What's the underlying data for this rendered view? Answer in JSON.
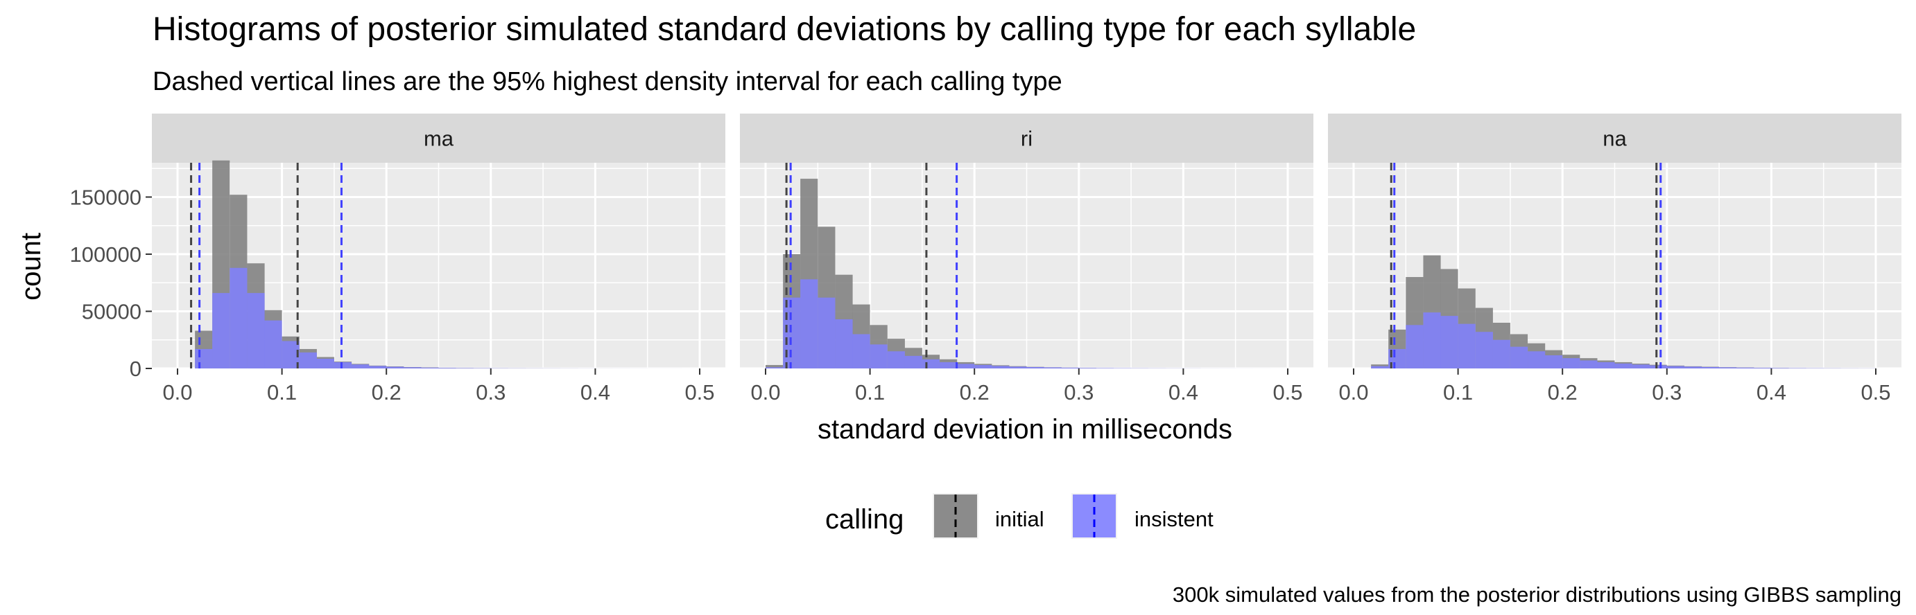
{
  "chart_data": {
    "type": "histogram",
    "title": "Histograms of posterior simulated standard deviations by calling type for each syllable",
    "subtitle": "Dashed vertical lines are the 95% highest density interval for each calling type",
    "xlabel": "standard deviation in milliseconds",
    "ylabel": "count",
    "caption": "300k simulated values from the posterior distributions using GIBBS sampling",
    "xlim": [
      0,
      0.5
    ],
    "ylim": [
      0,
      180000
    ],
    "x_ticks": [
      0.0,
      0.1,
      0.2,
      0.3,
      0.4,
      0.5
    ],
    "x_tick_labels": [
      "0.0",
      "0.1",
      "0.2",
      "0.3",
      "0.4",
      "0.5"
    ],
    "y_ticks": [
      0,
      50000,
      100000,
      150000
    ],
    "y_tick_labels": [
      "0",
      "50000",
      "100000",
      "150000"
    ],
    "bin_width": 0.0167,
    "bin_starts": [
      0.0,
      0.0167,
      0.0333,
      0.05,
      0.0667,
      0.0833,
      0.1,
      0.1167,
      0.1333,
      0.15,
      0.1667,
      0.1833,
      0.2,
      0.2167,
      0.2333,
      0.25,
      0.2667,
      0.2833,
      0.3,
      0.3167,
      0.3333,
      0.35,
      0.3667,
      0.3833,
      0.4,
      0.4167,
      0.4333,
      0.45,
      0.4667,
      0.4833
    ],
    "grid": true,
    "legend": {
      "title": "calling",
      "position": "bottom",
      "entries": [
        {
          "label": "initial",
          "fill": "#808080",
          "line": "#000000"
        },
        {
          "label": "insistent",
          "fill": "#8080ff",
          "line": "#0000ff"
        }
      ]
    },
    "facets": [
      {
        "label": "ma",
        "series": [
          {
            "name": "initial",
            "values": [
              0,
              33000,
              182000,
              152000,
              92000,
              51000,
              28000,
              17000,
              10000,
              6000,
              4000,
              2500,
              1800,
              1200,
              900,
              600,
              450,
              350,
              250,
              180,
              140,
              100,
              80,
              60,
              50,
              40,
              30,
              20,
              15,
              10
            ]
          },
          {
            "name": "insistent",
            "values": [
              0,
              17000,
              66000,
              88000,
              66000,
              42000,
              24000,
              14000,
              8500,
              5500,
              3500,
              2200,
              1500,
              1000,
              700,
              500,
              350,
              250,
              180,
              130,
              100,
              80,
              60,
              40,
              30,
              20,
              15,
              10,
              8,
              5
            ]
          }
        ],
        "hdi": {
          "initial": [
            0.013,
            0.115
          ],
          "insistent": [
            0.021,
            0.157
          ]
        }
      },
      {
        "label": "ri",
        "series": [
          {
            "name": "initial",
            "values": [
              3000,
              100000,
              166000,
              124000,
              82000,
              56000,
              38000,
              26000,
              18000,
              12000,
              8000,
              5500,
              4000,
              2800,
              2000,
              1400,
              1000,
              700,
              500,
              350,
              250,
              180,
              130,
              90,
              60,
              40,
              30,
              20,
              15,
              10
            ]
          },
          {
            "name": "insistent",
            "values": [
              1000,
              62000,
              78000,
              62000,
              43000,
              30000,
              21000,
              15000,
              11000,
              8000,
              5500,
              4000,
              3000,
              2200,
              1600,
              1200,
              900,
              650,
              480,
              350,
              250,
              180,
              130,
              90,
              60,
              40,
              30,
              20,
              15,
              10
            ]
          }
        ],
        "hdi": {
          "initial": [
            0.02,
            0.154
          ],
          "insistent": [
            0.024,
            0.183
          ]
        }
      },
      {
        "label": "na",
        "series": [
          {
            "name": "initial",
            "values": [
              0,
              3500,
              34000,
              80000,
              99000,
              87000,
              70000,
              53000,
              40000,
              30000,
              22000,
              16000,
              12000,
              9000,
              7000,
              5500,
              4200,
              3200,
              2500,
              1900,
              1500,
              1100,
              850,
              650,
              500,
              380,
              280,
              200,
              140,
              100
            ]
          },
          {
            "name": "insistent",
            "values": [
              0,
              2000,
              17000,
              38000,
              49000,
              46000,
              39000,
              32000,
              25000,
              19000,
              15000,
              11500,
              9000,
              7000,
              5500,
              4300,
              3400,
              2700,
              2100,
              1600,
              1250,
              950,
              720,
              540,
              400,
              300,
              220,
              160,
              110,
              80
            ]
          }
        ],
        "hdi": {
          "initial": [
            0.036,
            0.29
          ],
          "insistent": [
            0.039,
            0.294
          ]
        }
      }
    ]
  }
}
